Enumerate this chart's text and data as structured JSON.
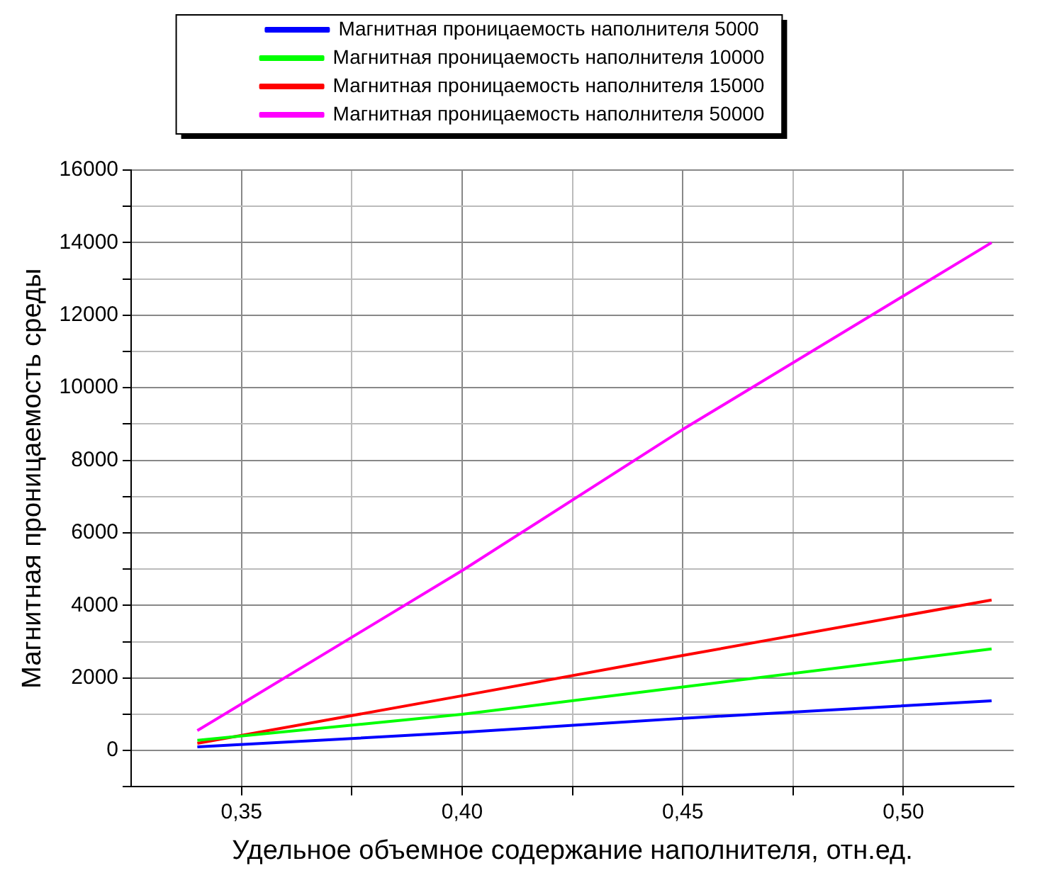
{
  "chart_data": {
    "type": "line",
    "xlabel": "Удельное объемное содержание наполнителя, отн.ед.",
    "ylabel": "Магнитная проницаемость среды",
    "x": [
      0.34,
      0.4,
      0.45,
      0.52
    ],
    "series": [
      {
        "name": "Магнитная проницаемость наполнителя 5000",
        "color": "#0000ff",
        "values": [
          100,
          500,
          890,
          1370
        ]
      },
      {
        "name": "Магнитная проницаемость наполнителя 10000",
        "color": "#00ff00",
        "values": [
          280,
          1000,
          1750,
          2800
        ]
      },
      {
        "name": "Магнитная проницаемость наполнителя 15000",
        "color": "#ff0000",
        "values": [
          200,
          1510,
          2620,
          4150
        ]
      },
      {
        "name": "Магнитная проницаемость наполнителя 50000",
        "color": "#ff00ff",
        "values": [
          550,
          4960,
          8850,
          14000
        ]
      }
    ],
    "xlim": [
      0.325,
      0.525
    ],
    "xticks": [
      {
        "value": 0.35,
        "label": "0,35"
      },
      {
        "value": 0.375,
        "label": null
      },
      {
        "value": 0.4,
        "label": "0,40"
      },
      {
        "value": 0.425,
        "label": null
      },
      {
        "value": 0.45,
        "label": "0,45"
      },
      {
        "value": 0.475,
        "label": null
      },
      {
        "value": 0.5,
        "label": "0,50"
      }
    ],
    "ylim": [
      -1000,
      16000
    ],
    "yticks": [
      {
        "value": -1000,
        "label": null
      },
      0,
      {
        "value": 1000,
        "label": null
      },
      2000,
      {
        "value": 3000,
        "label": null
      },
      4000,
      {
        "value": 5000,
        "label": null
      },
      6000,
      {
        "value": 7000,
        "label": null
      },
      8000,
      {
        "value": 9000,
        "label": null
      },
      10000,
      {
        "value": 11000,
        "label": null
      },
      12000,
      {
        "value": 13000,
        "label": null
      },
      14000,
      {
        "value": 15000,
        "label": null
      },
      16000
    ],
    "grid": true,
    "legend": "top",
    "marker": "none",
    "line_style": "solid"
  }
}
